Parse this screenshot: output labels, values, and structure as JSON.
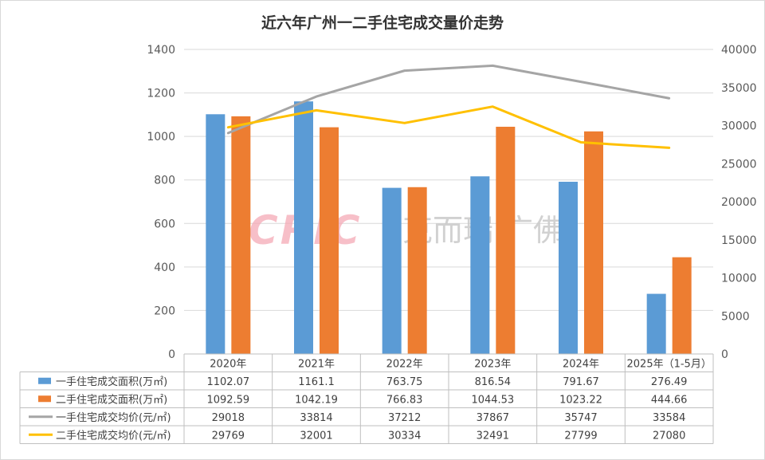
{
  "chart_data": {
    "type": "bar",
    "title": "近六年广州一二手住宅成交量价走势",
    "categories": [
      "2020年",
      "2021年",
      "2022年",
      "2023年",
      "2024年",
      "2025年（1-5月）"
    ],
    "left_axis": {
      "ylim": [
        0,
        1400
      ],
      "ticks": [
        "0",
        "200",
        "400",
        "600",
        "800",
        "1000",
        "1200",
        "1400"
      ]
    },
    "right_axis": {
      "ylim": [
        0,
        40000
      ],
      "ticks": [
        "0",
        "5000",
        "10000",
        "15000",
        "20000",
        "25000",
        "30000",
        "35000",
        "40000"
      ]
    },
    "grid": true,
    "legend": "bottom-table",
    "series": [
      {
        "name": "一手住宅成交面积(万㎡)",
        "kind": "bar",
        "axis": "left",
        "color": "#5b9bd5",
        "values": [
          1102.07,
          1161.1,
          763.75,
          816.54,
          791.67,
          276.49
        ],
        "labels": [
          "1102.07",
          "1161.1",
          "763.75",
          "816.54",
          "791.67",
          "276.49"
        ]
      },
      {
        "name": "二手住宅成交面积(万㎡)",
        "kind": "bar",
        "axis": "left",
        "color": "#ed7d31",
        "values": [
          1092.59,
          1042.19,
          766.83,
          1044.53,
          1023.22,
          444.66
        ],
        "labels": [
          "1092.59",
          "1042.19",
          "766.83",
          "1044.53",
          "1023.22",
          "444.66"
        ]
      },
      {
        "name": "一手住宅成交均价(元/㎡)",
        "kind": "line",
        "axis": "right",
        "color": "#a5a5a5",
        "values": [
          29018,
          33814,
          37212,
          37867,
          35747,
          33584
        ],
        "labels": [
          "29018",
          "33814",
          "37212",
          "37867",
          "35747",
          "33584"
        ]
      },
      {
        "name": "二手住宅成交均价(元/㎡)",
        "kind": "line",
        "axis": "right",
        "color": "#ffc000",
        "values": [
          29769,
          32001,
          30334,
          32491,
          27799,
          27080
        ],
        "labels": [
          "29769",
          "32001",
          "30334",
          "32491",
          "27799",
          "27080"
        ]
      }
    ]
  },
  "watermark": {
    "logo": "CRIC",
    "text": "克而瑞·广佛"
  }
}
